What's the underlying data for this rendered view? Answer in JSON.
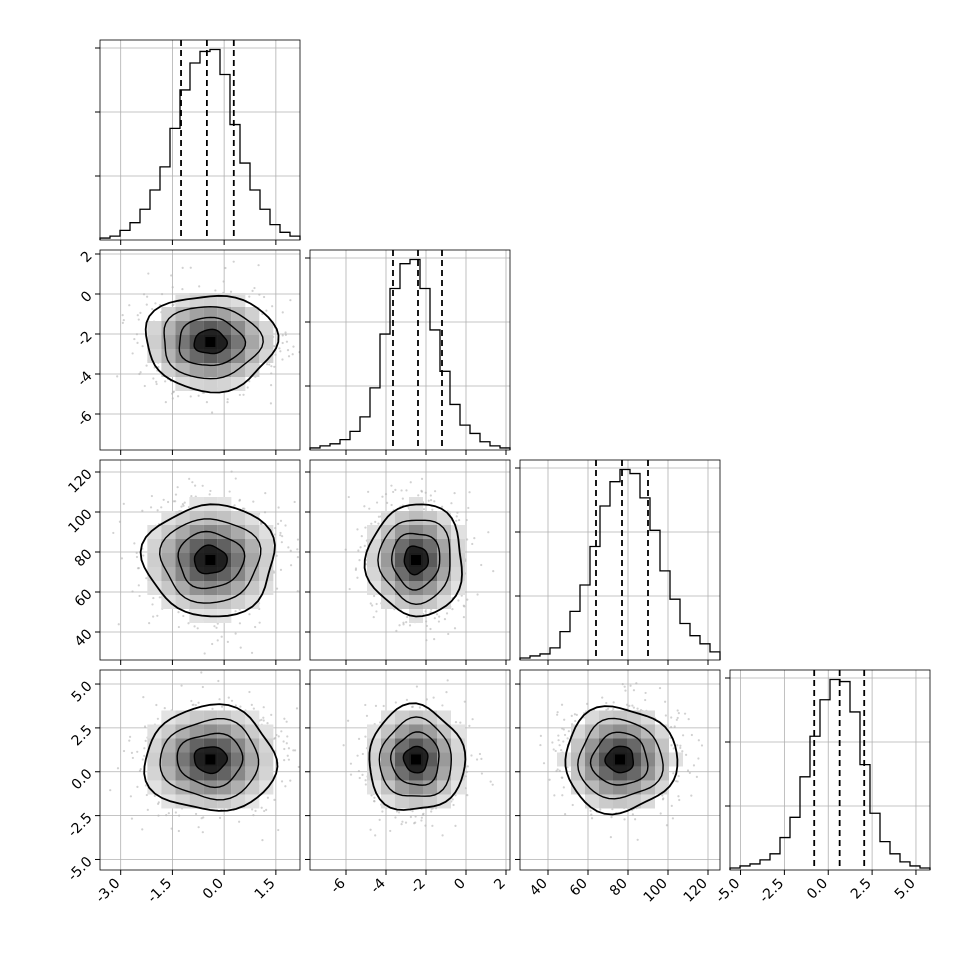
{
  "chart_data": {
    "type": "corner",
    "title": "",
    "grid": true,
    "variables": [
      {
        "label": "",
        "range": [
          -3.6,
          2.2
        ],
        "ticks": [
          "-3.0",
          "-1.5",
          "0.0",
          "1.5"
        ],
        "quantiles": [
          -1.25,
          -0.5,
          0.28
        ],
        "histogram": {
          "edges_range": [
            -3.6,
            2.2
          ],
          "counts": [
            1,
            2,
            5,
            9,
            16,
            26,
            38,
            58,
            78,
            92,
            98,
            99,
            86,
            60,
            40,
            26,
            16,
            8,
            4,
            2
          ]
        }
      },
      {
        "label": "",
        "range": [
          -7.8,
          2.2
        ],
        "ticks": [
          "-6",
          "-4",
          "-2",
          "0",
          "2"
        ],
        "quantiles": [
          -3.65,
          -2.4,
          -1.2
        ],
        "histogram": {
          "edges_range": [
            -7.8,
            2.2
          ],
          "counts": [
            1,
            2,
            3,
            5,
            9,
            16,
            30,
            56,
            78,
            90,
            92,
            78,
            58,
            38,
            22,
            12,
            8,
            4,
            2,
            1
          ]
        }
      },
      {
        "label": "",
        "range": [
          26,
          126
        ],
        "ticks": [
          "40",
          "60",
          "80",
          "100",
          "120"
        ],
        "quantiles": [
          64,
          77,
          90
        ],
        "histogram": {
          "edges_range": [
            26,
            126
          ],
          "counts": [
            1,
            2,
            3,
            6,
            14,
            24,
            37,
            56,
            76,
            88,
            94,
            92,
            80,
            64,
            44,
            30,
            18,
            12,
            8,
            4
          ]
        }
      },
      {
        "label": "",
        "range": [
          -5.6,
          5.8
        ],
        "ticks": [
          "-5.0",
          "-2.5",
          "0.0",
          "2.5",
          "5.0"
        ],
        "quantiles": [
          -0.8,
          0.65,
          2.05
        ],
        "histogram": {
          "edges_range": [
            -5.6,
            5.8
          ],
          "counts": [
            1,
            2,
            3,
            5,
            8,
            16,
            26,
            46,
            66,
            84,
            94,
            93,
            78,
            52,
            28,
            14,
            8,
            4,
            2,
            1
          ]
        }
      }
    ],
    "pairs": [
      {
        "x": 0,
        "y": 1,
        "center": [
          -0.4,
          -2.4
        ],
        "sd": [
          0.95,
          1.2
        ]
      },
      {
        "x": 0,
        "y": 2,
        "center": [
          -0.4,
          76
        ],
        "sd": [
          0.95,
          14
        ]
      },
      {
        "x": 1,
        "y": 2,
        "center": [
          -2.5,
          76
        ],
        "sd": [
          1.2,
          14
        ]
      },
      {
        "x": 0,
        "y": 3,
        "center": [
          -0.4,
          0.7
        ],
        "sd": [
          0.95,
          1.5
        ]
      },
      {
        "x": 1,
        "y": 3,
        "center": [
          -2.5,
          0.7
        ],
        "sd": [
          1.2,
          1.5
        ]
      },
      {
        "x": 2,
        "y": 3,
        "center": [
          76,
          0.7
        ],
        "sd": [
          14,
          1.5
        ]
      }
    ],
    "contour_levels_sigma": [
      0.5,
      1.0,
      1.5,
      2.0
    ],
    "colors": {
      "contour": "#000000",
      "scatter": "#b3b3b3",
      "grid": "#b0b0b0",
      "quantile_line": "#000000"
    }
  }
}
